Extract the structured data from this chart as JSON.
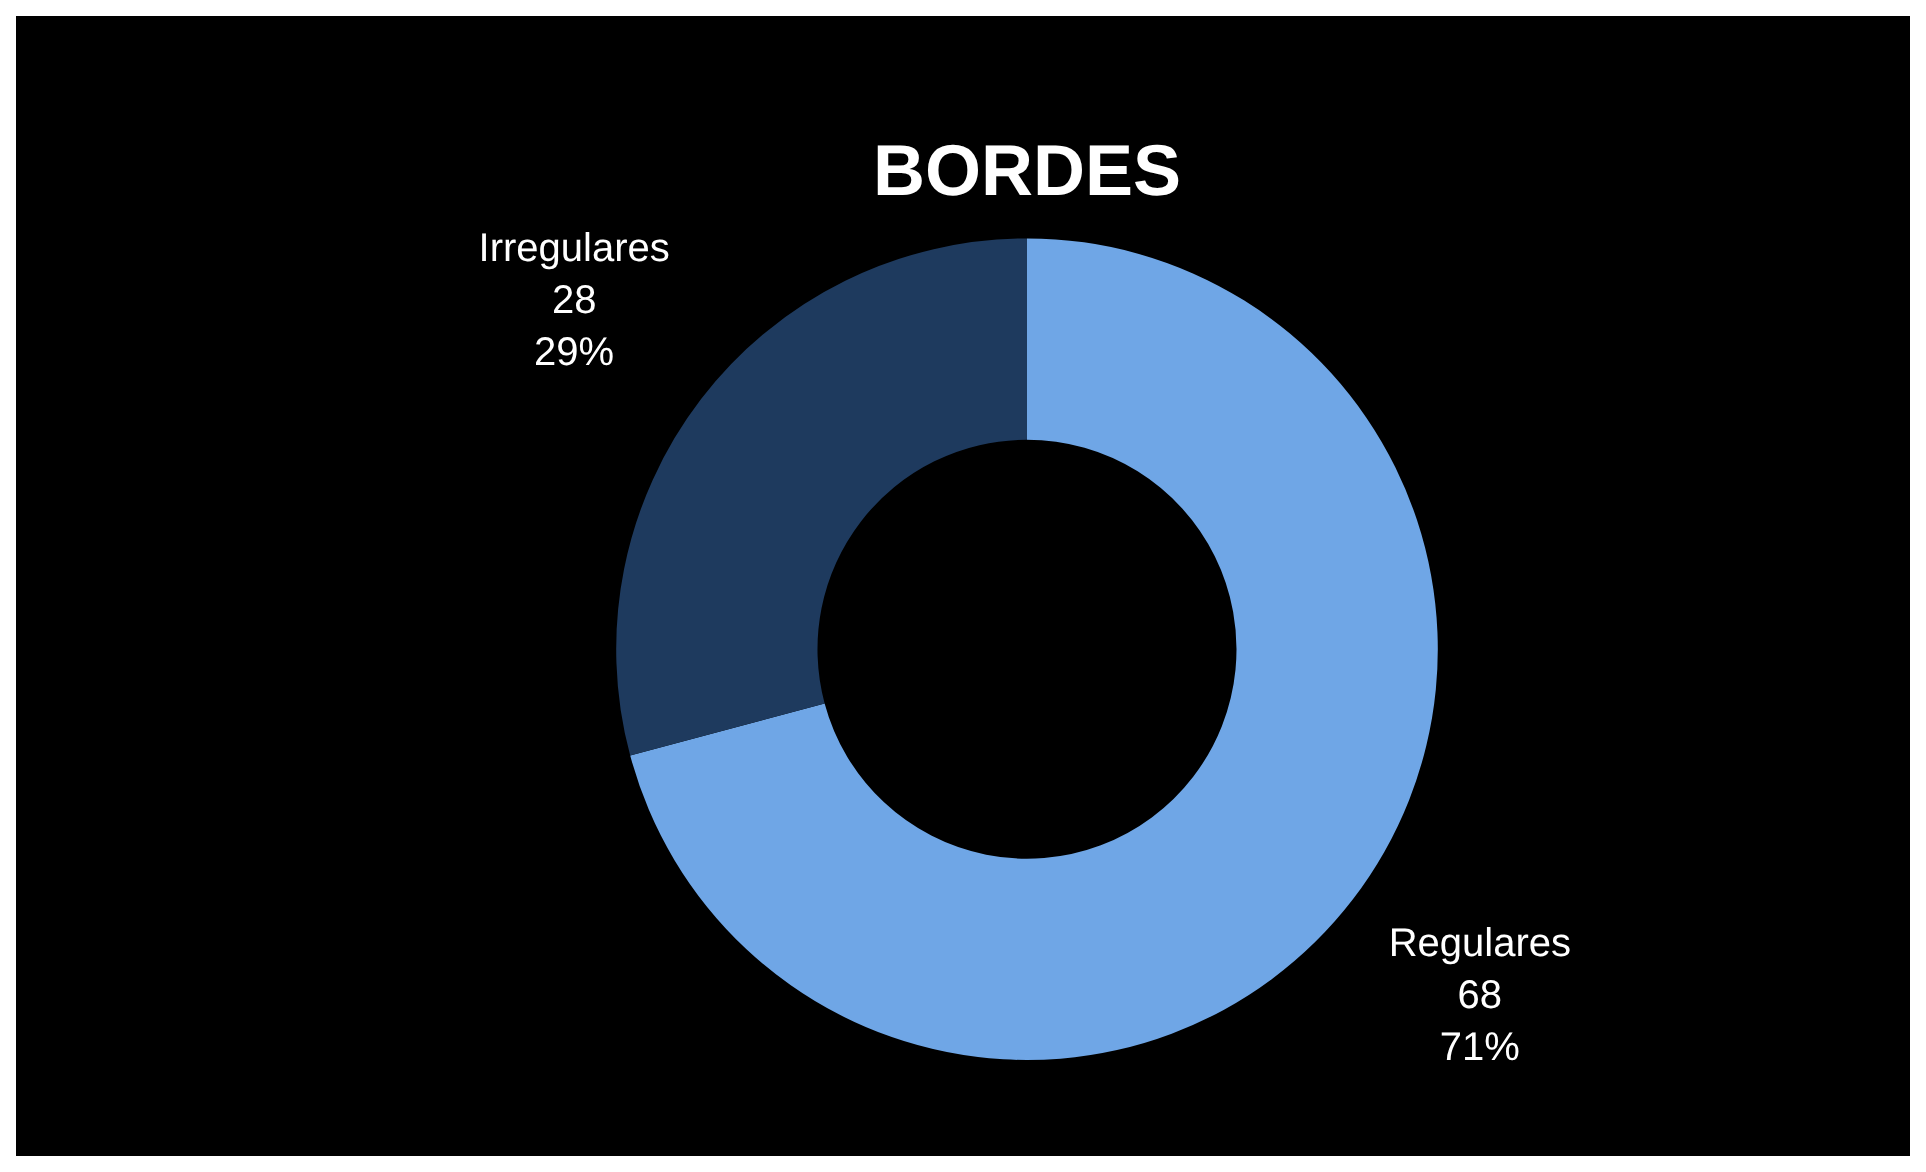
{
  "chart_data": {
    "type": "donut",
    "title": "BORDES",
    "categories": [
      "Regulares",
      "Irregulares"
    ],
    "values": [
      68,
      28
    ],
    "colors": [
      "#6fa6e6",
      "#1e3a5e"
    ],
    "value_labels": [
      "68\n71%",
      "28\n29%"
    ]
  }
}
